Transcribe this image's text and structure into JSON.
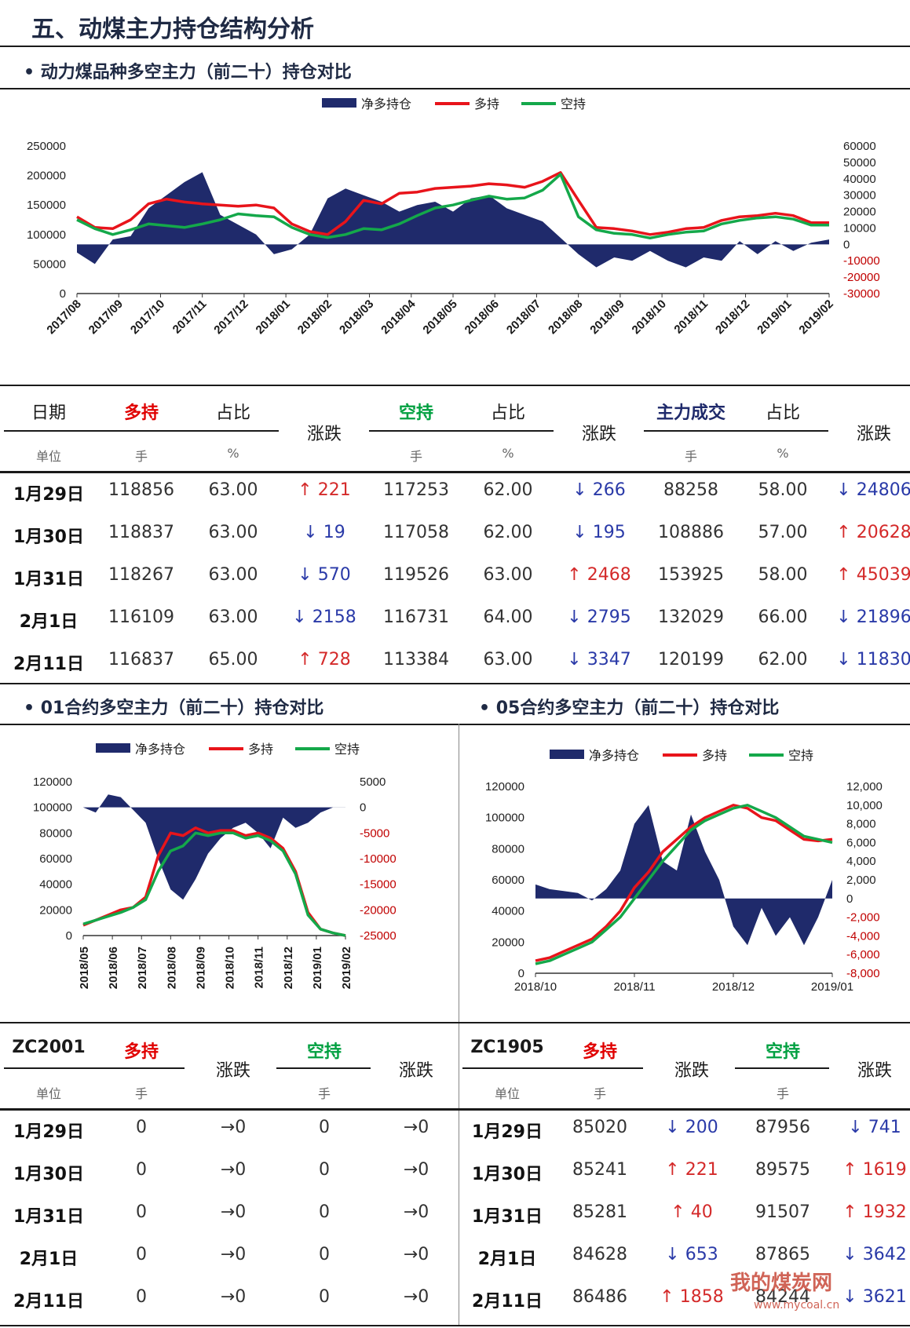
{
  "page": {
    "title": "五、动煤主力持仓结构分析",
    "subtitle_main": "动力煤品种多空主力（前二十）持仓对比",
    "subtitle_01": "01合约多空主力（前二十）持仓对比",
    "subtitle_05": "05合约多空主力（前二十）持仓对比",
    "watermark": "我的煤炭网",
    "watermark_url": "www.mycoal.cn"
  },
  "colors": {
    "net": "#1f2a6b",
    "long": "#e8141b",
    "short": "#14a84a"
  },
  "main_table": {
    "headers": {
      "date": "日期",
      "long": "多持",
      "ratio": "占比",
      "change": "涨跌",
      "short": "空持",
      "volume": "主力成交"
    },
    "units": {
      "unit": "单位",
      "hand": "手",
      "pct": "%"
    },
    "rows": [
      {
        "date": "1月29日",
        "long": "118856",
        "long_ratio": "63.00",
        "long_chg": "221",
        "long_dir": "up",
        "short": "117253",
        "short_ratio": "62.00",
        "short_chg": "266",
        "short_dir": "down",
        "vol": "88258",
        "vol_ratio": "58.00",
        "vol_chg": "24806",
        "vol_dir": "down"
      },
      {
        "date": "1月30日",
        "long": "118837",
        "long_ratio": "63.00",
        "long_chg": "19",
        "long_dir": "down",
        "short": "117058",
        "short_ratio": "62.00",
        "short_chg": "195",
        "short_dir": "down",
        "vol": "108886",
        "vol_ratio": "57.00",
        "vol_chg": "20628",
        "vol_dir": "up"
      },
      {
        "date": "1月31日",
        "long": "118267",
        "long_ratio": "63.00",
        "long_chg": "570",
        "long_dir": "down",
        "short": "119526",
        "short_ratio": "63.00",
        "short_chg": "2468",
        "short_dir": "up",
        "vol": "153925",
        "vol_ratio": "58.00",
        "vol_chg": "45039",
        "vol_dir": "up"
      },
      {
        "date": "2月1日",
        "long": "116109",
        "long_ratio": "63.00",
        "long_chg": "2158",
        "long_dir": "down",
        "short": "116731",
        "short_ratio": "64.00",
        "short_chg": "2795",
        "short_dir": "down",
        "vol": "132029",
        "vol_ratio": "66.00",
        "vol_chg": "21896",
        "vol_dir": "down"
      },
      {
        "date": "2月11日",
        "long": "116837",
        "long_ratio": "65.00",
        "long_chg": "728",
        "long_dir": "up",
        "short": "113384",
        "short_ratio": "63.00",
        "short_chg": "3347",
        "short_dir": "down",
        "vol": "120199",
        "vol_ratio": "62.00",
        "vol_chg": "11830",
        "vol_dir": "down"
      }
    ]
  },
  "zc2001_table": {
    "code": "ZC2001",
    "rows": [
      {
        "date": "1月29日",
        "long": "0",
        "long_chg": "0",
        "short": "0",
        "short_chg": "0"
      },
      {
        "date": "1月30日",
        "long": "0",
        "long_chg": "0",
        "short": "0",
        "short_chg": "0"
      },
      {
        "date": "1月31日",
        "long": "0",
        "long_chg": "0",
        "short": "0",
        "short_chg": "0"
      },
      {
        "date": "2月1日",
        "long": "0",
        "long_chg": "0",
        "short": "0",
        "short_chg": "0"
      },
      {
        "date": "2月11日",
        "long": "0",
        "long_chg": "0",
        "short": "0",
        "short_chg": "0"
      }
    ]
  },
  "zc1905_table": {
    "code": "ZC1905",
    "rows": [
      {
        "date": "1月29日",
        "long": "85020",
        "long_chg": "200",
        "long_dir": "down",
        "short": "87956",
        "short_chg": "741",
        "short_dir": "down"
      },
      {
        "date": "1月30日",
        "long": "85241",
        "long_chg": "221",
        "long_dir": "up",
        "short": "89575",
        "short_chg": "1619",
        "short_dir": "up"
      },
      {
        "date": "1月31日",
        "long": "85281",
        "long_chg": "40",
        "long_dir": "up",
        "short": "91507",
        "short_chg": "1932",
        "short_dir": "up"
      },
      {
        "date": "2月1日",
        "long": "84628",
        "long_chg": "653",
        "long_dir": "down",
        "short": "87865",
        "short_chg": "3642",
        "short_dir": "down"
      },
      {
        "date": "2月11日",
        "long": "86486",
        "long_chg": "1858",
        "long_dir": "up",
        "short": "84244",
        "short_chg": "3621",
        "short_dir": "down"
      }
    ]
  },
  "arrows": {
    "up": "↑",
    "down": "↓",
    "flat": "→"
  },
  "chart_data": [
    {
      "type": "line",
      "legend": [
        "净多持仓",
        "多持",
        "空持"
      ],
      "legend_position": "top-center",
      "x_ticks": [
        "2017/08",
        "2017/09",
        "2017/10",
        "2017/11",
        "2017/12",
        "2018/01",
        "2018/02",
        "2018/03",
        "2018/04",
        "2018/05",
        "2018/06",
        "2018/07",
        "2018/08",
        "2018/09",
        "2018/10",
        "2018/11",
        "2018/12",
        "2019/01",
        "2019/02"
      ],
      "y_left_ticks": [
        "250000",
        "200000",
        "150000",
        "100000",
        "50000",
        "0"
      ],
      "y_right_ticks": [
        "60000",
        "50000",
        "40000",
        "30000",
        "20000",
        "10000",
        "0",
        "-10000",
        "-20000",
        "-30000"
      ],
      "ylim_left": [
        0,
        250000
      ],
      "ylim_right": [
        -30000,
        60000
      ],
      "series": [
        {
          "name": "净多持仓",
          "axis": "right",
          "kind": "area",
          "values": [
            -5000,
            -12000,
            3000,
            5000,
            22000,
            30000,
            38000,
            44000,
            18000,
            12000,
            6000,
            -6000,
            -3000,
            6000,
            28000,
            34000,
            30000,
            26000,
            20000,
            24000,
            26000,
            20000,
            28000,
            30000,
            22000,
            18000,
            14000,
            4000,
            -6000,
            -14000,
            -8000,
            -10000,
            -4000,
            -10000,
            -14000,
            -8000,
            -10000,
            2000,
            -6000,
            2000,
            -4000,
            1000,
            3000
          ]
        },
        {
          "name": "多持",
          "axis": "left",
          "kind": "line",
          "values": [
            130000,
            112000,
            110000,
            125000,
            152000,
            160000,
            155000,
            152000,
            150000,
            148000,
            150000,
            145000,
            118000,
            105000,
            100000,
            122000,
            158000,
            152000,
            170000,
            172000,
            178000,
            180000,
            182000,
            186000,
            184000,
            180000,
            190000,
            205000,
            158000,
            112000,
            110000,
            106000,
            100000,
            104000,
            110000,
            112000,
            124000,
            130000,
            132000,
            136000,
            132000,
            120000,
            120000
          ]
        },
        {
          "name": "空持",
          "axis": "left",
          "kind": "line",
          "values": [
            125000,
            110000,
            100000,
            108000,
            118000,
            115000,
            112000,
            118000,
            125000,
            135000,
            132000,
            130000,
            112000,
            100000,
            95000,
            100000,
            110000,
            108000,
            118000,
            132000,
            145000,
            150000,
            158000,
            165000,
            160000,
            162000,
            175000,
            202000,
            130000,
            108000,
            102000,
            100000,
            94000,
            100000,
            104000,
            106000,
            118000,
            124000,
            128000,
            130000,
            126000,
            116000,
            116000
          ]
        }
      ]
    },
    {
      "type": "line",
      "legend": [
        "净多持仓",
        "多持",
        "空持"
      ],
      "legend_position": "top-center",
      "x_ticks": [
        "2018/05",
        "2018/06",
        "2018/07",
        "2018/08",
        "2018/09",
        "2018/10",
        "2018/11",
        "2018/12",
        "2019/01",
        "2019/02"
      ],
      "y_left_ticks": [
        "120000",
        "100000",
        "80000",
        "60000",
        "40000",
        "20000",
        "0"
      ],
      "y_right_ticks": [
        "5000",
        "0",
        "-5000",
        "-10000",
        "-15000",
        "-20000",
        "-25000"
      ],
      "ylim_left": [
        0,
        120000
      ],
      "ylim_right": [
        -25000,
        5000
      ],
      "series": [
        {
          "name": "净多持仓",
          "axis": "right",
          "kind": "area",
          "values": [
            0,
            -1000,
            2500,
            2000,
            -500,
            -3000,
            -10000,
            -16000,
            -18000,
            -14000,
            -9000,
            -6000,
            -4000,
            -3000,
            -5000,
            -8000,
            -2000,
            -4000,
            -3000,
            -1000,
            0,
            0
          ]
        },
        {
          "name": "多持",
          "axis": "left",
          "kind": "line",
          "values": [
            8000,
            12000,
            16000,
            20000,
            22000,
            30000,
            62000,
            80000,
            78000,
            84000,
            80000,
            82000,
            82000,
            78000,
            80000,
            76000,
            68000,
            50000,
            18000,
            5000,
            2000,
            0
          ]
        },
        {
          "name": "空持",
          "axis": "left",
          "kind": "line",
          "values": [
            9000,
            12000,
            15000,
            18000,
            22000,
            28000,
            50000,
            66000,
            70000,
            80000,
            78000,
            80000,
            80000,
            76000,
            78000,
            74000,
            66000,
            48000,
            16000,
            5000,
            2000,
            0
          ]
        }
      ]
    },
    {
      "type": "line",
      "legend": [
        "净多持仓",
        "多持",
        "空持"
      ],
      "legend_position": "top-center",
      "x_ticks": [
        "2018/10",
        "2018/11",
        "2018/12",
        "2019/01"
      ],
      "y_left_ticks": [
        "120000",
        "100000",
        "80000",
        "60000",
        "40000",
        "20000",
        "0"
      ],
      "y_right_ticks": [
        "12,000",
        "10,000",
        "8,000",
        "6,000",
        "4,000",
        "2,000",
        "0",
        "-2,000",
        "-4,000",
        "-6,000",
        "-8,000"
      ],
      "ylim_left": [
        0,
        120000
      ],
      "ylim_right": [
        -8000,
        12000
      ],
      "series": [
        {
          "name": "净多持仓",
          "axis": "right",
          "kind": "area",
          "values": [
            1500,
            1000,
            800,
            600,
            -200,
            1000,
            3000,
            8000,
            10000,
            4000,
            3000,
            9000,
            5000,
            2000,
            -3000,
            -5000,
            -1000,
            -4000,
            -2000,
            -5000,
            -2000,
            2000
          ]
        },
        {
          "name": "多持",
          "axis": "left",
          "kind": "line",
          "values": [
            8000,
            10000,
            14000,
            18000,
            22000,
            30000,
            40000,
            55000,
            65000,
            78000,
            86000,
            94000,
            100000,
            104000,
            108000,
            106000,
            100000,
            98000,
            92000,
            86000,
            85000,
            86000
          ]
        },
        {
          "name": "空持",
          "axis": "left",
          "kind": "line",
          "values": [
            6000,
            8000,
            12000,
            16000,
            20000,
            28000,
            36000,
            48000,
            60000,
            72000,
            82000,
            92000,
            98000,
            102000,
            106000,
            108000,
            104000,
            100000,
            94000,
            88000,
            86000,
            84000
          ]
        }
      ]
    }
  ]
}
